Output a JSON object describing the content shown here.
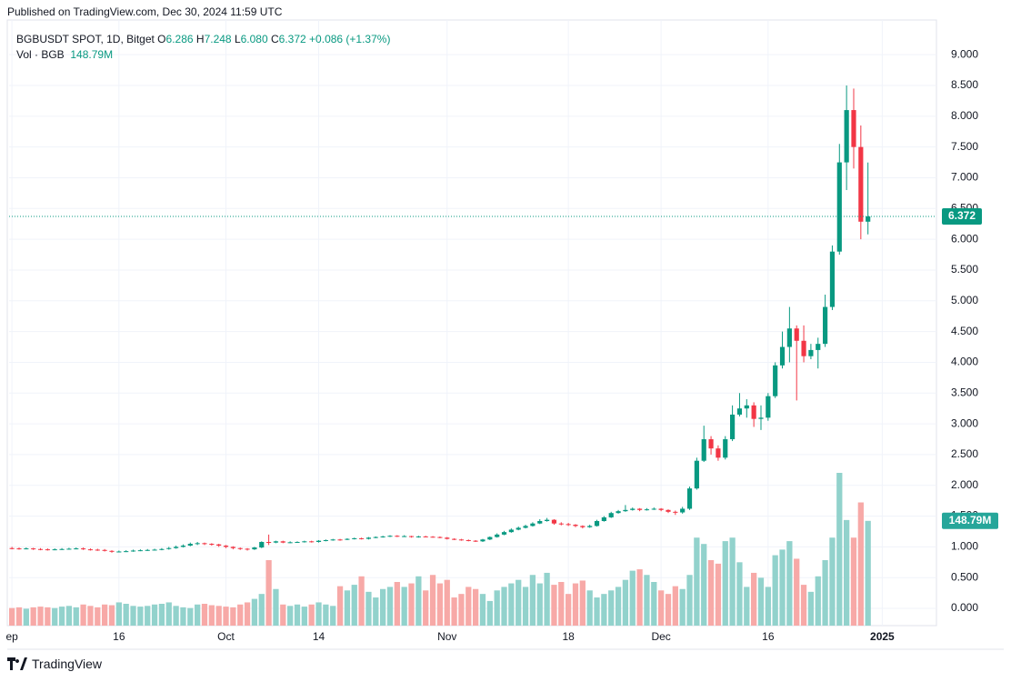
{
  "header": {
    "published": "Published on TradingView.com, Dec 30, 2024 11:59 UTC"
  },
  "chart_data": {
    "type": "candlestick",
    "symbol": "BGBUSDT SPOT, 1D, Bitget",
    "legend": {
      "items": [
        {
          "key": "O",
          "text": "6.286"
        },
        {
          "key": "H",
          "text": "7.248"
        },
        {
          "key": "L",
          "text": "6.080"
        },
        {
          "key": "C",
          "text": "6.372"
        }
      ],
      "change": "+0.086 (+1.37%)",
      "volume_label": "Vol · BGB",
      "volume_value": "148.79M"
    },
    "open": [
      0.98,
      0.975,
      0.97,
      0.975,
      0.965,
      0.96,
      0.955,
      0.96,
      0.965,
      0.97,
      0.975,
      0.96,
      0.955,
      0.95,
      0.935,
      0.92,
      0.925,
      0.93,
      0.94,
      0.945,
      0.95,
      0.955,
      0.965,
      0.98,
      1.0,
      1.02,
      1.05,
      1.06,
      1.05,
      1.04,
      1.02,
      1.0,
      0.98,
      0.97,
      0.96,
      0.99,
      1.08,
      1.07,
      1.09,
      1.07,
      1.075,
      1.08,
      1.09,
      1.08,
      1.1,
      1.11,
      1.12,
      1.115,
      1.13,
      1.14,
      1.13,
      1.15,
      1.16,
      1.17,
      1.18,
      1.17,
      1.175,
      1.16,
      1.17,
      1.165,
      1.16,
      1.15,
      1.13,
      1.12,
      1.11,
      1.1,
      1.09,
      1.12,
      1.16,
      1.2,
      1.24,
      1.28,
      1.31,
      1.34,
      1.38,
      1.42,
      1.44,
      1.38,
      1.37,
      1.36,
      1.34,
      1.32,
      1.34,
      1.42,
      1.48,
      1.55,
      1.58,
      1.6,
      1.62,
      1.6,
      1.61,
      1.62,
      1.6,
      1.57,
      1.56,
      1.62,
      1.95,
      2.4,
      2.75,
      2.6,
      2.45,
      2.75,
      3.15,
      3.25,
      3.3,
      3.08,
      3.1,
      3.45,
      3.95,
      4.25,
      4.55,
      4.35,
      4.1,
      4.2,
      4.3,
      4.9,
      5.8,
      7.25,
      8.1,
      7.5,
      6.286
    ],
    "high": [
      1.0,
      0.99,
      0.99,
      0.985,
      0.98,
      0.975,
      0.975,
      0.98,
      0.985,
      0.99,
      0.99,
      0.975,
      0.97,
      0.965,
      0.945,
      0.94,
      0.945,
      0.955,
      0.96,
      0.965,
      0.97,
      0.98,
      1.0,
      1.02,
      1.04,
      1.07,
      1.08,
      1.07,
      1.06,
      1.05,
      1.03,
      1.01,
      0.99,
      0.98,
      1.0,
      1.09,
      1.2,
      1.1,
      1.1,
      1.09,
      1.09,
      1.1,
      1.1,
      1.11,
      1.12,
      1.13,
      1.13,
      1.14,
      1.15,
      1.15,
      1.16,
      1.17,
      1.18,
      1.19,
      1.19,
      1.19,
      1.18,
      1.18,
      1.18,
      1.175,
      1.17,
      1.16,
      1.14,
      1.13,
      1.12,
      1.11,
      1.13,
      1.17,
      1.22,
      1.26,
      1.3,
      1.33,
      1.36,
      1.4,
      1.45,
      1.47,
      1.45,
      1.4,
      1.39,
      1.37,
      1.35,
      1.36,
      1.44,
      1.5,
      1.57,
      1.6,
      1.68,
      1.64,
      1.63,
      1.63,
      1.64,
      1.63,
      1.61,
      1.59,
      1.65,
      1.98,
      2.45,
      2.97,
      2.8,
      2.65,
      2.8,
      3.3,
      3.5,
      3.4,
      3.35,
      3.3,
      3.5,
      4.0,
      4.5,
      4.9,
      4.6,
      4.6,
      4.3,
      4.4,
      5.1,
      5.9,
      7.55,
      8.5,
      8.45,
      7.85,
      7.248
    ],
    "low": [
      0.96,
      0.955,
      0.96,
      0.95,
      0.945,
      0.94,
      0.945,
      0.95,
      0.955,
      0.96,
      0.95,
      0.94,
      0.935,
      0.925,
      0.905,
      0.91,
      0.915,
      0.92,
      0.93,
      0.935,
      0.94,
      0.945,
      0.955,
      0.97,
      0.99,
      1.01,
      1.03,
      1.03,
      1.02,
      1.0,
      0.98,
      0.96,
      0.95,
      0.94,
      0.95,
      0.98,
      1.03,
      1.06,
      1.06,
      1.06,
      1.07,
      1.07,
      1.07,
      1.07,
      1.09,
      1.1,
      1.1,
      1.11,
      1.12,
      1.12,
      1.12,
      1.14,
      1.15,
      1.16,
      1.16,
      1.16,
      1.15,
      1.15,
      1.155,
      1.15,
      1.14,
      1.12,
      1.11,
      1.1,
      1.09,
      1.08,
      1.08,
      1.11,
      1.15,
      1.19,
      1.23,
      1.27,
      1.3,
      1.33,
      1.37,
      1.41,
      1.36,
      1.35,
      1.34,
      1.32,
      1.3,
      1.31,
      1.33,
      1.41,
      1.47,
      1.54,
      1.57,
      1.59,
      1.58,
      1.59,
      1.6,
      1.58,
      1.55,
      1.52,
      1.54,
      1.6,
      1.93,
      2.38,
      2.5,
      2.4,
      2.42,
      2.72,
      3.12,
      3.1,
      2.95,
      2.9,
      3.05,
      3.42,
      3.9,
      4.0,
      3.38,
      4.0,
      4.05,
      3.9,
      4.25,
      4.85,
      5.75,
      6.8,
      7.15,
      6.0,
      6.08
    ],
    "close": [
      0.975,
      0.97,
      0.975,
      0.965,
      0.96,
      0.955,
      0.96,
      0.965,
      0.97,
      0.975,
      0.96,
      0.955,
      0.95,
      0.935,
      0.92,
      0.925,
      0.93,
      0.94,
      0.945,
      0.95,
      0.955,
      0.965,
      0.98,
      1.0,
      1.02,
      1.05,
      1.06,
      1.05,
      1.04,
      1.02,
      1.0,
      0.98,
      0.97,
      0.96,
      0.99,
      1.08,
      1.07,
      1.09,
      1.07,
      1.075,
      1.08,
      1.09,
      1.08,
      1.1,
      1.11,
      1.12,
      1.115,
      1.13,
      1.14,
      1.13,
      1.15,
      1.16,
      1.17,
      1.18,
      1.17,
      1.175,
      1.16,
      1.17,
      1.165,
      1.16,
      1.15,
      1.13,
      1.12,
      1.11,
      1.1,
      1.09,
      1.12,
      1.16,
      1.2,
      1.24,
      1.28,
      1.31,
      1.34,
      1.38,
      1.42,
      1.44,
      1.38,
      1.37,
      1.36,
      1.34,
      1.32,
      1.34,
      1.42,
      1.48,
      1.55,
      1.58,
      1.6,
      1.62,
      1.6,
      1.61,
      1.62,
      1.6,
      1.57,
      1.56,
      1.62,
      1.95,
      2.4,
      2.75,
      2.6,
      2.45,
      2.75,
      3.15,
      3.25,
      3.3,
      3.08,
      3.1,
      3.45,
      3.95,
      4.25,
      4.55,
      4.35,
      4.1,
      4.2,
      4.3,
      4.9,
      5.8,
      7.25,
      8.1,
      7.5,
      6.286,
      6.372
    ],
    "volume": [
      25,
      26,
      24,
      26,
      27,
      26,
      25,
      27,
      28,
      26,
      30,
      28,
      26,
      30,
      29,
      33,
      31,
      28,
      27,
      28,
      30,
      31,
      33,
      28,
      26,
      25,
      30,
      31,
      29,
      28,
      27,
      26,
      30,
      33,
      38,
      45,
      93,
      52,
      30,
      28,
      30,
      27,
      30,
      33,
      30,
      28,
      56,
      50,
      58,
      70,
      48,
      40,
      52,
      55,
      62,
      55,
      60,
      70,
      50,
      72,
      60,
      65,
      40,
      45,
      55,
      52,
      45,
      35,
      50,
      55,
      60,
      65,
      55,
      72,
      60,
      75,
      58,
      62,
      45,
      60,
      64,
      50,
      40,
      45,
      50,
      55,
      65,
      78,
      80,
      72,
      62,
      50,
      45,
      56,
      52,
      72,
      125,
      116,
      93,
      88,
      120,
      125,
      90,
      55,
      75,
      68,
      55,
      100,
      108,
      120,
      95,
      58,
      48,
      70,
      93,
      125,
      217,
      150,
      125,
      175,
      148.79
    ],
    "up_color": "#089981",
    "down_color": "#f23645",
    "volume_up_color": "#92d2cc",
    "volume_down_color": "#f7a9a7",
    "ylim": [
      -0.28,
      9.52
    ],
    "yticks": [
      {
        "value": 0,
        "label": "0.000"
      },
      {
        "value": 0.5,
        "label": "0.500"
      },
      {
        "value": 1,
        "label": "1.000"
      },
      {
        "value": 1.5,
        "label": "1.500"
      },
      {
        "value": 2,
        "label": "2.000"
      },
      {
        "value": 2.5,
        "label": "2.500"
      },
      {
        "value": 3,
        "label": "3.000"
      },
      {
        "value": 3.5,
        "label": "3.500"
      },
      {
        "value": 4,
        "label": "4.000"
      },
      {
        "value": 4.5,
        "label": "4.500"
      },
      {
        "value": 5,
        "label": "5.000"
      },
      {
        "value": 5.5,
        "label": "5.500"
      },
      {
        "value": 6,
        "label": "6.000"
      },
      {
        "value": 6.5,
        "label": "6.500"
      },
      {
        "value": 7,
        "label": "7.000"
      },
      {
        "value": 7.5,
        "label": "7.500"
      },
      {
        "value": 8,
        "label": "8.000"
      },
      {
        "value": 8.5,
        "label": "8.500"
      },
      {
        "value": 9,
        "label": "9.000"
      }
    ],
    "xlim": [
      -0.4,
      129.6
    ],
    "xticks": [
      {
        "value": 0,
        "label": "ep"
      },
      {
        "value": 15,
        "label": "16"
      },
      {
        "value": 30,
        "label": "Oct"
      },
      {
        "value": 43,
        "label": "14"
      },
      {
        "value": 61,
        "label": "Nov"
      },
      {
        "value": 78,
        "label": "18"
      },
      {
        "value": 91,
        "label": "Dec"
      },
      {
        "value": 106,
        "label": "16"
      },
      {
        "value": 122,
        "label": "2025"
      }
    ],
    "grid": true
  },
  "footer": {
    "brand": "TradingView"
  }
}
